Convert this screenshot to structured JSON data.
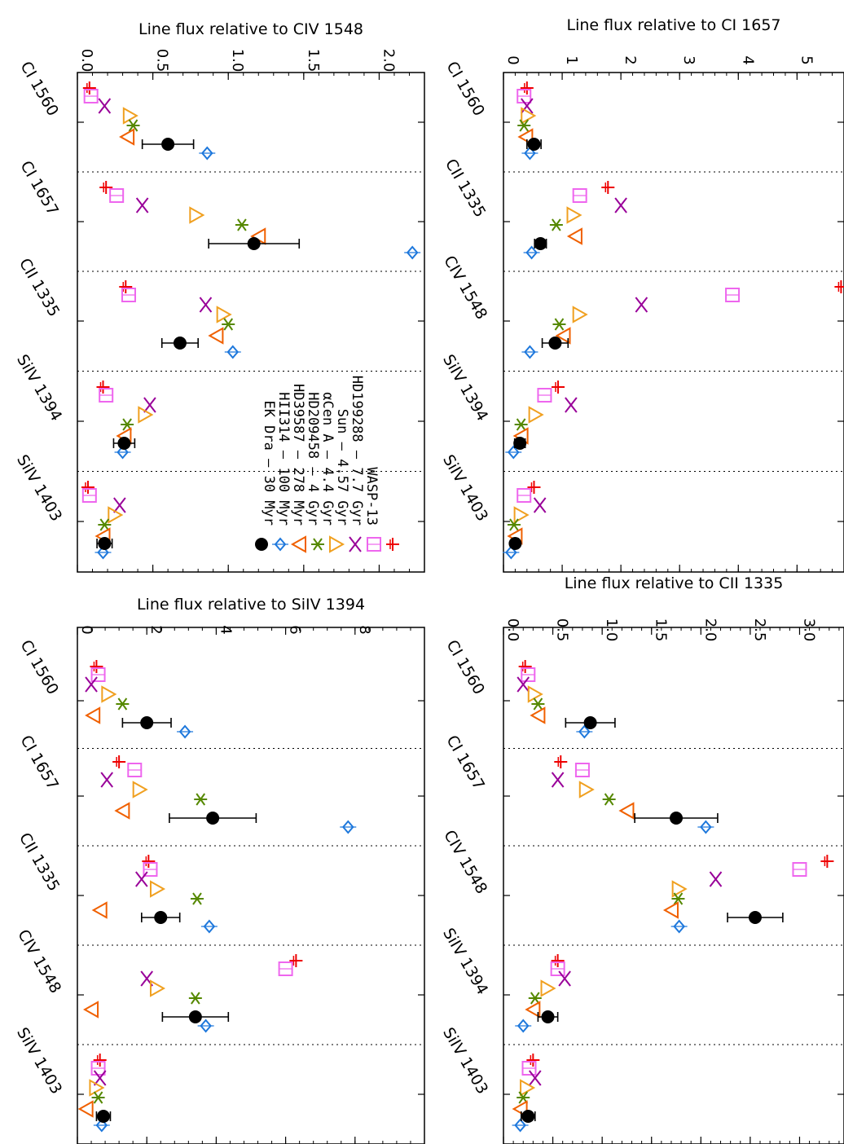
{
  "styles": [
    {
      "name": "EK Dra - 30 Myr",
      "color": "#ee0000",
      "marker": "plus"
    },
    {
      "name": "HII314 - 100 Myr",
      "color": "#ee66ee",
      "marker": "square"
    },
    {
      "name": "HD39587 - 278 Myr",
      "color": "#990099",
      "marker": "x"
    },
    {
      "name": "HD209458 - 4 Gyr",
      "color": "#f0a020",
      "marker": "triangle-down"
    },
    {
      "name": "αCen A - 4.4 Gyr",
      "color": "#558800",
      "marker": "asterisk"
    },
    {
      "name": "Sun - 4.57 Gyr",
      "color": "#f06000",
      "marker": "triangle-left"
    },
    {
      "name": "HD199288 - 7.7 Gyr",
      "color": "#1e78dc",
      "marker": "diamond"
    },
    {
      "name": "WASP-13",
      "color": "#000000",
      "marker": "circle"
    }
  ],
  "legend": {
    "labels": [
      "EK Dra – 30 Myr",
      "HII314 – 100 Myr",
      "HD39587 – 278 Myr",
      "HD209458 – 4 Gyr",
      "αCen A – 4.4 Gyr",
      "Sun – 4.57 Gyr",
      "HD199288 – 7.7 Gyr",
      "WASP-13"
    ],
    "placement": "right side of top-left panel, rotated 90°"
  },
  "chart_data": [
    {
      "type": "scatter",
      "ylabel": "Line flux relative to CIV 1548",
      "categories": [
        "CI 1560",
        "CI 1657",
        "CII 1335",
        "SiIV 1394",
        "SiIV 1403"
      ],
      "ylim": [
        0,
        2.3
      ],
      "yticks": [
        "0.0",
        "0.5",
        "1.0",
        "1.5",
        "2.0"
      ],
      "series": [
        {
          "values": [
            0.08,
            0.19,
            0.32,
            0.17,
            0.07
          ]
        },
        {
          "values": [
            0.09,
            0.26,
            0.34,
            0.19,
            0.08
          ]
        },
        {
          "values": [
            0.18,
            0.43,
            0.85,
            0.48,
            0.28
          ]
        },
        {
          "values": [
            0.35,
            0.79,
            0.97,
            0.45,
            0.25
          ]
        },
        {
          "values": [
            0.37,
            1.09,
            1.0,
            0.33,
            0.18
          ]
        },
        {
          "values": [
            0.33,
            1.2,
            0.92,
            0.31,
            0.17
          ]
        },
        {
          "values": [
            0.86,
            2.22,
            1.03,
            0.3,
            0.17
          ]
        },
        {
          "values": [
            0.6,
            1.17,
            0.68,
            0.31,
            0.18
          ],
          "err": [
            0.17,
            0.3,
            0.12,
            0.07,
            0.05
          ]
        }
      ]
    },
    {
      "type": "scatter",
      "ylabel": "Line flux relative to CI 1657",
      "categories": [
        "CI 1560",
        "CII 1335",
        "CIV 1548",
        "SiIV 1394",
        "SiIV 1403"
      ],
      "ylim": [
        0,
        5.8
      ],
      "yticks": [
        "0",
        "1",
        "2",
        "3",
        "4",
        "5"
      ],
      "series": [
        {
          "values": [
            0.4,
            1.78,
            5.75,
            0.93,
            0.52
          ]
        },
        {
          "values": [
            0.35,
            1.3,
            3.9,
            0.7,
            0.35
          ]
        },
        {
          "values": [
            0.4,
            2.0,
            2.35,
            1.15,
            0.62
          ]
        },
        {
          "values": [
            0.42,
            1.2,
            1.3,
            0.55,
            0.3
          ]
        },
        {
          "values": [
            0.35,
            0.9,
            0.95,
            0.3,
            0.18
          ]
        },
        {
          "values": [
            0.38,
            1.22,
            1.02,
            0.3,
            0.2
          ]
        },
        {
          "values": [
            0.45,
            0.48,
            0.45,
            0.17,
            0.13
          ]
        },
        {
          "values": [
            0.52,
            0.63,
            0.88,
            0.28,
            0.2
          ],
          "err": [
            0.12,
            0.1,
            0.22,
            0.09,
            0.06
          ]
        }
      ]
    },
    {
      "type": "scatter",
      "ylabel": "Line flux relative to SiIV 1394",
      "categories": [
        "CI 1560",
        "CI 1657",
        "CII 1335",
        "CIV 1548",
        "SiIV 1403"
      ],
      "ylim": [
        0,
        10
      ],
      "yticks": [
        "0",
        "2",
        "4",
        "6",
        "8"
      ],
      "series": [
        {
          "values": [
            0.55,
            1.2,
            2.05,
            6.3,
            0.65
          ]
        },
        {
          "values": [
            0.6,
            1.65,
            2.1,
            6.0,
            0.6
          ]
        },
        {
          "values": [
            0.4,
            0.85,
            1.85,
            2.0,
            0.65
          ]
        },
        {
          "values": [
            0.9,
            1.8,
            2.3,
            2.3,
            0.55
          ]
        },
        {
          "values": [
            1.3,
            3.55,
            3.45,
            3.4,
            0.6
          ]
        },
        {
          "values": [
            0.45,
            1.3,
            0.65,
            0.4,
            0.25
          ]
        },
        {
          "values": [
            3.1,
            7.8,
            3.8,
            3.7,
            0.7
          ]
        },
        {
          "values": [
            2.0,
            3.9,
            2.4,
            3.4,
            0.75
          ],
          "err": [
            0.7,
            1.25,
            0.55,
            0.95,
            0.2
          ]
        }
      ]
    },
    {
      "type": "scatter",
      "ylabel": "Line flux relative to CII 1335",
      "categories": [
        "CI 1560",
        "CI 1657",
        "CIV 1548",
        "SiIV 1394",
        "SiIV 1403"
      ],
      "ylim": [
        0,
        3.45
      ],
      "yticks": [
        "0.0",
        "0.5",
        "1.0",
        "1.5",
        "2.0",
        "2.5",
        "3.0"
      ],
      "series": [
        {
          "values": [
            0.22,
            0.58,
            3.28,
            0.55,
            0.3
          ]
        },
        {
          "values": [
            0.25,
            0.8,
            3.0,
            0.55,
            0.26
          ]
        },
        {
          "values": [
            0.2,
            0.55,
            2.15,
            0.62,
            0.32
          ]
        },
        {
          "values": [
            0.32,
            0.84,
            1.78,
            0.45,
            0.24
          ]
        },
        {
          "values": [
            0.35,
            1.07,
            1.77,
            0.32,
            0.2
          ]
        },
        {
          "values": [
            0.35,
            1.25,
            1.7,
            0.3,
            0.17
          ]
        },
        {
          "values": [
            0.82,
            2.05,
            1.78,
            0.2,
            0.17
          ]
        },
        {
          "values": [
            0.88,
            1.75,
            2.55,
            0.45,
            0.25
          ],
          "err": [
            0.25,
            0.42,
            0.28,
            0.1,
            0.07
          ]
        }
      ]
    }
  ]
}
